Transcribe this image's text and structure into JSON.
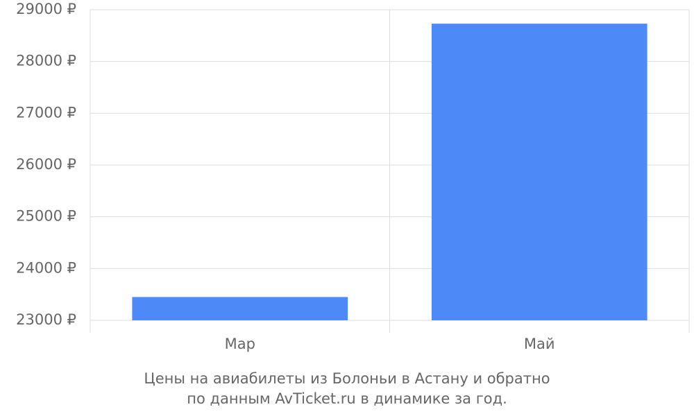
{
  "chart_data": {
    "type": "bar",
    "title": "Цены на авиабилеты из Болоньи в Астану и обратно",
    "subtitle": "по данным AvTicket.ru в динамике за год.",
    "categories": [
      "Мар",
      "Май"
    ],
    "values": [
      23450,
      28730
    ],
    "color": "#4d8af8",
    "ylim": [
      23000,
      29000
    ],
    "yticks": [
      {
        "value": 23000,
        "label": "23000 ₽"
      },
      {
        "value": 24000,
        "label": "24000 ₽"
      },
      {
        "value": 25000,
        "label": "25000 ₽"
      },
      {
        "value": 26000,
        "label": "26000 ₽"
      },
      {
        "value": 27000,
        "label": "27000 ₽"
      },
      {
        "value": 28000,
        "label": "28000 ₽"
      },
      {
        "value": 29000,
        "label": "29000 ₽"
      }
    ],
    "grid": true
  }
}
